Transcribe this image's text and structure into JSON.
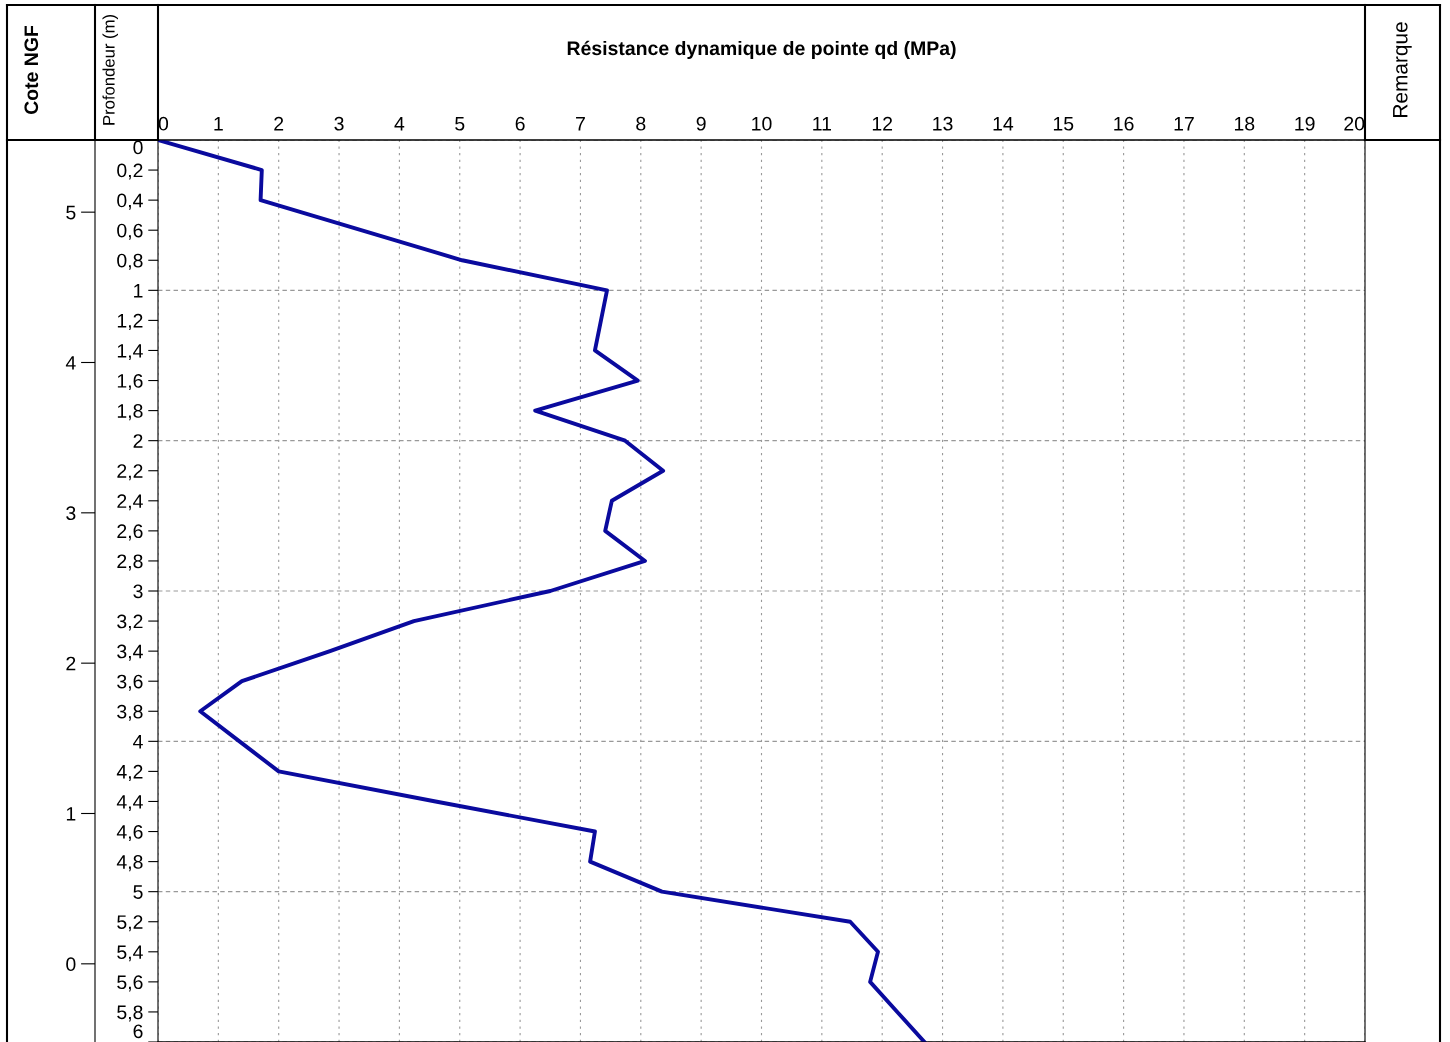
{
  "chart_data": {
    "type": "line",
    "xlabel": "Résistance dynamique de pointe qd (MPa)",
    "ylabel": "Profondeur (m)",
    "y2label": "Cote NGF",
    "annotations": [
      "Remarque"
    ],
    "series": [
      {
        "color": "#0a0a9e",
        "x": [
          0,
          1.72,
          1.7,
          5.04,
          7.44,
          7.34,
          7.24,
          7.95,
          6.25,
          7.74,
          8.37,
          7.52,
          7.41,
          8.07,
          6.5,
          4.24,
          2.85,
          1.39,
          0.7,
          1.35,
          2.0,
          4.6,
          7.24,
          7.16,
          8.35,
          11.47,
          11.93,
          11.8,
          12.25,
          12.7
        ],
        "values": [
          0,
          0.2,
          0.4,
          0.8,
          1.0,
          1.2,
          1.4,
          1.6,
          1.8,
          2.0,
          2.2,
          2.4,
          2.6,
          2.8,
          3.0,
          3.2,
          3.4,
          3.6,
          3.8,
          4.0,
          4.2,
          4.4,
          4.6,
          4.8,
          5.0,
          5.2,
          5.4,
          5.6,
          5.8,
          6.0
        ]
      }
    ],
    "xlim": [
      0,
      20
    ],
    "xticks": [
      0,
      1,
      2,
      3,
      4,
      5,
      6,
      7,
      8,
      9,
      10,
      11,
      12,
      13,
      14,
      15,
      16,
      17,
      18,
      19,
      20
    ],
    "ylim": [
      6,
      0
    ],
    "yticks": [
      0,
      {
        "value": 0.2,
        "label": "0,2"
      },
      {
        "value": 0.4,
        "label": "0,4"
      },
      {
        "value": 0.6,
        "label": "0,6"
      },
      {
        "value": 0.8,
        "label": "0,8"
      },
      1,
      {
        "value": 1.2,
        "label": "1,2"
      },
      {
        "value": 1.4,
        "label": "1,4"
      },
      {
        "value": 1.6,
        "label": "1,6"
      },
      {
        "value": 1.8,
        "label": "1,8"
      },
      2,
      {
        "value": 2.2,
        "label": "2,2"
      },
      {
        "value": 2.4,
        "label": "2,4"
      },
      {
        "value": 2.6,
        "label": "2,6"
      },
      {
        "value": 2.8,
        "label": "2,8"
      },
      3,
      {
        "value": 3.2,
        "label": "3,2"
      },
      {
        "value": 3.4,
        "label": "3,4"
      },
      {
        "value": 3.6,
        "label": "3,6"
      },
      {
        "value": 3.8,
        "label": "3,8"
      },
      4,
      {
        "value": 4.2,
        "label": "4,2"
      },
      {
        "value": 4.4,
        "label": "4,4"
      },
      {
        "value": 4.6,
        "label": "4,6"
      },
      {
        "value": 4.8,
        "label": "4,8"
      },
      5,
      {
        "value": 5.2,
        "label": "5,2"
      },
      {
        "value": 5.4,
        "label": "5,4"
      },
      {
        "value": 5.6,
        "label": "5,6"
      },
      {
        "value": 5.8,
        "label": "5,8"
      },
      6
    ],
    "y2lim": [
      -0.52,
      5.48
    ],
    "y2ticks": [
      5,
      4,
      3,
      2,
      1,
      0
    ],
    "grid": true,
    "legend": false,
    "marker": "none",
    "line_style": "solid"
  }
}
